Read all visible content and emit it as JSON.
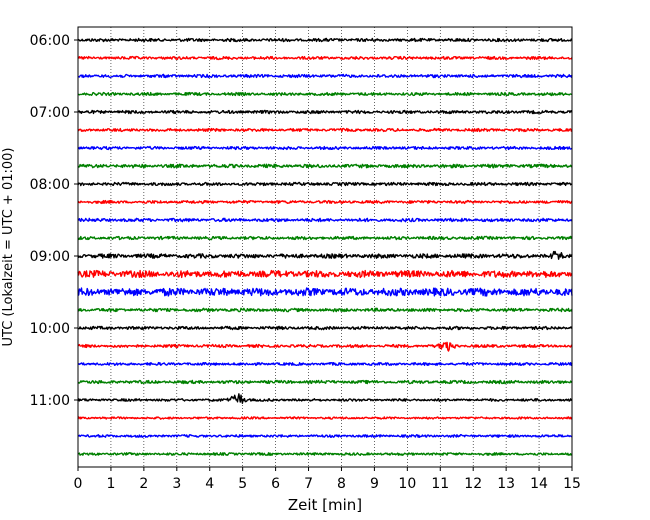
{
  "chart_data": {
    "type": "line",
    "subtype": "helicorder",
    "xlabel": "Zeit  [min]",
    "ylabel": "UTC (Lokalzeit = UTC + 01:00)",
    "xlim": [
      0,
      15
    ],
    "x_ticks": [
      0,
      1,
      2,
      3,
      4,
      5,
      6,
      7,
      8,
      9,
      10,
      11,
      12,
      13,
      14,
      15
    ],
    "y_ticks": [
      "06:00",
      "07:00",
      "08:00",
      "09:00",
      "10:00",
      "11:00"
    ],
    "row_interval_min": 15,
    "start_time": "06:00",
    "grid": "vertical dotted lines at each minute",
    "colors_cycle": [
      "#000000",
      "#ff0000",
      "#0000ff",
      "#008000"
    ],
    "traces": [
      {
        "start": "06:00",
        "color": "#000000",
        "amplitude": 1.6
      },
      {
        "start": "06:15",
        "color": "#ff0000",
        "amplitude": 1.5
      },
      {
        "start": "06:30",
        "color": "#0000ff",
        "amplitude": 1.6
      },
      {
        "start": "06:45",
        "color": "#008000",
        "amplitude": 1.5
      },
      {
        "start": "07:00",
        "color": "#000000",
        "amplitude": 1.6
      },
      {
        "start": "07:15",
        "color": "#ff0000",
        "amplitude": 1.5
      },
      {
        "start": "07:30",
        "color": "#0000ff",
        "amplitude": 1.5
      },
      {
        "start": "07:45",
        "color": "#008000",
        "amplitude": 1.8
      },
      {
        "start": "08:00",
        "color": "#000000",
        "amplitude": 1.6
      },
      {
        "start": "08:15",
        "color": "#ff0000",
        "amplitude": 1.5
      },
      {
        "start": "08:30",
        "color": "#0000ff",
        "amplitude": 1.7
      },
      {
        "start": "08:45",
        "color": "#008000",
        "amplitude": 1.6
      },
      {
        "start": "09:00",
        "color": "#000000",
        "amplitude": 2.2,
        "event_min": 14.5,
        "event_amplitude": 4
      },
      {
        "start": "09:15",
        "color": "#ff0000",
        "amplitude": 3.5
      },
      {
        "start": "09:30",
        "color": "#0000ff",
        "amplitude": 4.0
      },
      {
        "start": "09:45",
        "color": "#008000",
        "amplitude": 1.7
      },
      {
        "start": "10:00",
        "color": "#000000",
        "amplitude": 1.6
      },
      {
        "start": "10:15",
        "color": "#ff0000",
        "amplitude": 1.5,
        "event_min": 11.2,
        "event_amplitude": 6
      },
      {
        "start": "10:30",
        "color": "#0000ff",
        "amplitude": 1.4
      },
      {
        "start": "10:45",
        "color": "#008000",
        "amplitude": 1.6
      },
      {
        "start": "11:00",
        "color": "#000000",
        "amplitude": 1.3,
        "event_min": 4.85,
        "event_amplitude": 7
      },
      {
        "start": "11:15",
        "color": "#ff0000",
        "amplitude": 1.1
      },
      {
        "start": "11:30",
        "color": "#0000ff",
        "amplitude": 1.3
      },
      {
        "start": "11:45",
        "color": "#008000",
        "amplitude": 1.3
      }
    ]
  }
}
